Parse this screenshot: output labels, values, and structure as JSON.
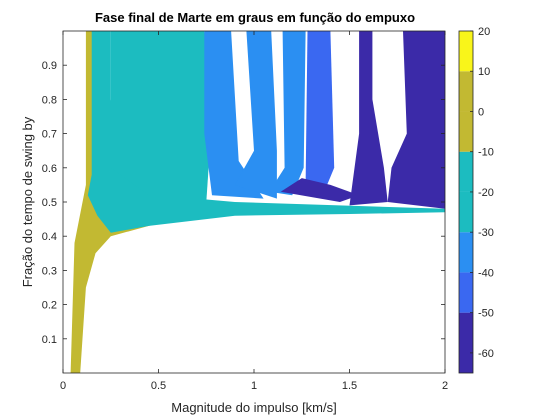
{
  "chart_data": {
    "type": "heatmap",
    "title": "Fase final de Marte em graus em função do empuxo",
    "xlabel": "Magnitude do impulso [km/s]",
    "ylabel": "Fração do tempo de swing by",
    "xlim": [
      0,
      2
    ],
    "ylim": [
      0,
      1
    ],
    "xticks": [
      "0",
      "0.5",
      "1",
      "1.5",
      "2"
    ],
    "yticks": [
      "0.1",
      "0.2",
      "0.3",
      "0.4",
      "0.5",
      "0.6",
      "0.7",
      "0.8",
      "0.9"
    ],
    "grid": false,
    "colorbar": {
      "clim": [
        -65,
        20
      ],
      "ticks": [
        "-60",
        "-50",
        "-40",
        "-30",
        "-20",
        "-10",
        "0",
        "10",
        "20"
      ],
      "bands": [
        {
          "min": -65,
          "max": -50,
          "color": "#3b2aa8"
        },
        {
          "min": -50,
          "max": -40,
          "color": "#3a68f1"
        },
        {
          "min": -40,
          "max": -30,
          "color": "#2b8ff2"
        },
        {
          "min": -30,
          "max": -20,
          "color": "#1cbcc0"
        },
        {
          "min": -20,
          "max": -10,
          "color": "#1cbcc0"
        },
        {
          "min": -10,
          "max": 0,
          "color": "#c2b932"
        },
        {
          "min": 0,
          "max": 10,
          "color": "#c2b932"
        },
        {
          "min": 10,
          "max": 20,
          "color": "#f9f51a"
        }
      ]
    },
    "regions": [
      {
        "name": "-10 a 0",
        "points": [
          [
            0.04,
            0.0
          ],
          [
            0.09,
            0.0
          ],
          [
            0.12,
            0.25
          ],
          [
            0.17,
            0.35
          ],
          [
            0.25,
            0.4
          ],
          [
            0.45,
            0.43
          ],
          [
            0.55,
            0.45
          ],
          [
            0.26,
            0.45
          ],
          [
            0.2,
            0.52
          ],
          [
            0.22,
            1.0
          ],
          [
            0.12,
            1.0
          ],
          [
            0.12,
            0.55
          ],
          [
            0.06,
            0.38
          ]
        ]
      },
      {
        "name": "-20 a -10",
        "points": [
          [
            0.13,
            0.52
          ],
          [
            0.18,
            0.46
          ],
          [
            0.25,
            0.41
          ],
          [
            0.45,
            0.43
          ],
          [
            0.9,
            0.46
          ],
          [
            1.5,
            0.465
          ],
          [
            2.0,
            0.47
          ],
          [
            2.0,
            0.48
          ],
          [
            0.9,
            0.5
          ],
          [
            0.5,
            0.52
          ],
          [
            0.3,
            0.6
          ],
          [
            0.25,
            0.8
          ],
          [
            0.25,
            1.0
          ],
          [
            0.15,
            1.0
          ],
          [
            0.15,
            0.58
          ]
        ]
      },
      {
        "name": "-30 a -20",
        "points": [
          [
            0.25,
            1.0
          ],
          [
            0.25,
            0.6
          ],
          [
            0.45,
            0.52
          ],
          [
            0.75,
            0.5
          ],
          [
            0.78,
            0.75
          ],
          [
            0.74,
            1.0
          ]
        ]
      },
      {
        "name": "-40 a -30 (1)",
        "points": [
          [
            0.74,
            1.0
          ],
          [
            0.74,
            0.7
          ],
          [
            0.78,
            0.52
          ],
          [
            1.05,
            0.51
          ],
          [
            0.92,
            0.62
          ],
          [
            0.88,
            1.0
          ]
        ]
      },
      {
        "name": "-40 a -30 (2)",
        "points": [
          [
            0.9,
            0.55
          ],
          [
            1.12,
            0.51
          ],
          [
            1.12,
            0.65
          ],
          [
            1.09,
            1.0
          ],
          [
            0.96,
            1.0
          ],
          [
            1.0,
            0.65
          ]
        ]
      },
      {
        "name": "-40 a -30 (3)",
        "points": [
          [
            1.08,
            0.53
          ],
          [
            1.2,
            0.52
          ],
          [
            1.26,
            0.6
          ],
          [
            1.27,
            1.0
          ],
          [
            1.15,
            1.0
          ],
          [
            1.16,
            0.6
          ]
        ]
      },
      {
        "name": "-50 a -40",
        "points": [
          [
            1.28,
            1.0
          ],
          [
            1.27,
            0.55
          ],
          [
            1.36,
            0.52
          ],
          [
            1.42,
            0.6
          ],
          [
            1.4,
            1.0
          ]
        ]
      },
      {
        "name": "-65 a -50 (1)",
        "points": [
          [
            1.14,
            0.53
          ],
          [
            1.45,
            0.5
          ],
          [
            1.55,
            0.52
          ],
          [
            1.4,
            0.55
          ],
          [
            1.25,
            0.57
          ]
        ]
      },
      {
        "name": "-65 a -50 (2)",
        "points": [
          [
            1.5,
            0.49
          ],
          [
            1.7,
            0.5
          ],
          [
            1.68,
            0.6
          ],
          [
            1.62,
            0.8
          ],
          [
            1.62,
            1.0
          ],
          [
            1.55,
            1.0
          ],
          [
            1.55,
            0.7
          ]
        ]
      },
      {
        "name": "-65 a -50 (3)",
        "points": [
          [
            1.7,
            0.5
          ],
          [
            2.0,
            0.48
          ],
          [
            2.0,
            1.0
          ],
          [
            1.78,
            1.0
          ],
          [
            1.8,
            0.7
          ],
          [
            1.72,
            0.6
          ]
        ]
      }
    ]
  }
}
